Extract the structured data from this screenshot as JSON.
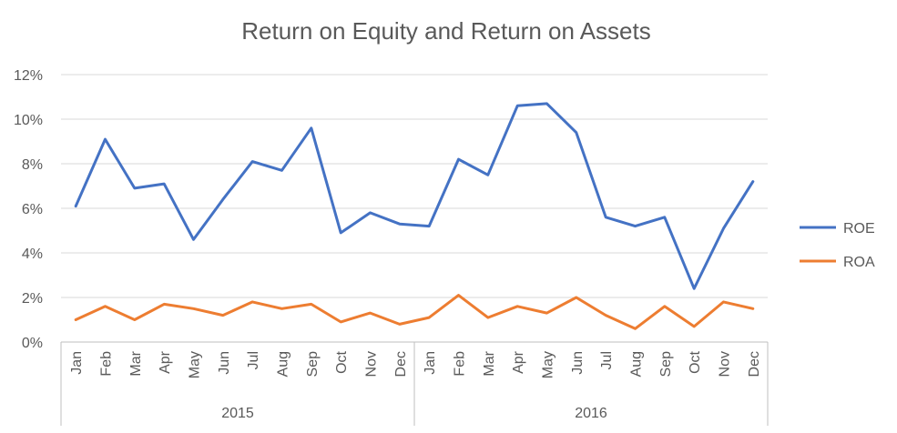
{
  "chart_data": {
    "type": "line",
    "title": "Return on Equity and Return on Assets",
    "categories": [
      "Jan",
      "Feb",
      "Mar",
      "Apr",
      "May",
      "Jun",
      "Jul",
      "Aug",
      "Sep",
      "Oct",
      "Nov",
      "Dec",
      "Jan",
      "Feb",
      "Mar",
      "Apr",
      "May",
      "Jun",
      "Jul",
      "Aug",
      "Sep",
      "Oct",
      "Nov",
      "Dec"
    ],
    "groups": [
      {
        "label": "2015",
        "count": 12
      },
      {
        "label": "2016",
        "count": 12
      }
    ],
    "y_ticks": [
      "0%",
      "2%",
      "4%",
      "6%",
      "8%",
      "10%",
      "12%"
    ],
    "ylim": [
      0,
      12
    ],
    "grid": true,
    "legend_position": "right",
    "series": [
      {
        "name": "ROE",
        "color": "#4472C4",
        "values": [
          6.1,
          9.1,
          6.9,
          7.1,
          4.6,
          6.4,
          8.1,
          7.7,
          9.6,
          4.9,
          5.8,
          5.3,
          5.2,
          8.2,
          7.5,
          10.6,
          10.7,
          9.4,
          5.6,
          5.2,
          5.6,
          2.4,
          5.1,
          7.2
        ]
      },
      {
        "name": "ROA",
        "color": "#ED7D31",
        "values": [
          1.0,
          1.6,
          1.0,
          1.7,
          1.5,
          1.2,
          1.8,
          1.5,
          1.7,
          0.9,
          1.3,
          0.8,
          1.1,
          2.1,
          1.1,
          1.6,
          1.3,
          2.0,
          1.2,
          0.6,
          1.6,
          0.7,
          1.8,
          1.5
        ]
      }
    ]
  }
}
